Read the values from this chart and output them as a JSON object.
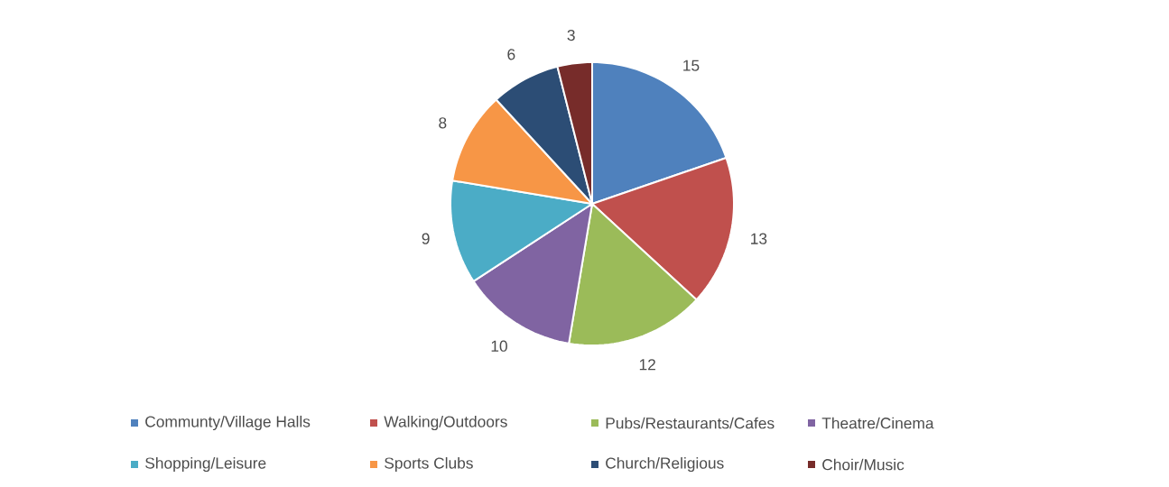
{
  "chart_data": {
    "type": "pie",
    "categories": [
      "Communty/Village Halls",
      "Walking/Outdoors",
      "Pubs/Restaurants/Cafes",
      "Theatre/Cinema",
      "Shopping/Leisure",
      "Sports Clubs",
      "Church/Religious",
      "Choir/Music"
    ],
    "values": [
      15,
      13,
      12,
      10,
      9,
      8,
      6,
      3
    ],
    "colors": [
      "#4f81bd",
      "#c0504d",
      "#9bbb59",
      "#8064a2",
      "#4bacc6",
      "#f79646",
      "#2c4d75",
      "#772c2a"
    ],
    "data_labels": true,
    "legend": "bottom"
  }
}
